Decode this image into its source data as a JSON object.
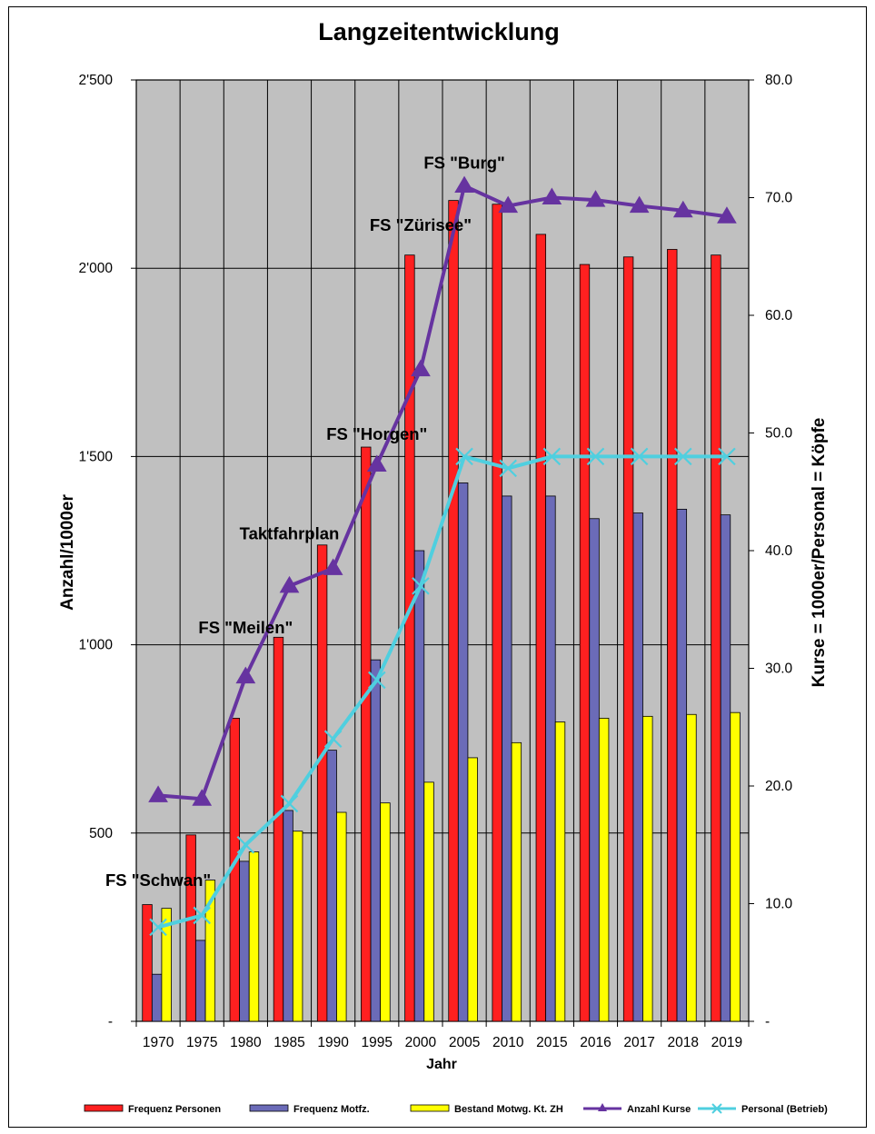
{
  "chart_data": {
    "type": "bar",
    "title": "Langzeitentwicklung",
    "xlabel": "Jahr",
    "ylabel": "Anzahl/1000er",
    "y2label": "Kurse = 1000er/Personal = Köpfe",
    "categories": [
      "1970",
      "1975",
      "1980",
      "1985",
      "1990",
      "1995",
      "2000",
      "2005",
      "2010",
      "2015",
      "2016",
      "2017",
      "2018",
      "2019"
    ],
    "ylim": [
      0,
      2500
    ],
    "y2lim": [
      0,
      80
    ],
    "yticks": [
      "-",
      "500",
      "1'000",
      "1'500",
      "2'000",
      "2'500"
    ],
    "y2ticks": [
      "-",
      "10.0",
      "20.0",
      "30.0",
      "40.0",
      "50.0",
      "60.0",
      "70.0",
      "80.0"
    ],
    "grid": true,
    "plot_background": "#c0c0c0",
    "series": [
      {
        "name": "Frequenz  Personen",
        "type": "bar",
        "axis": "left",
        "color": "#ff2020",
        "values": [
          310,
          495,
          805,
          1020,
          1265,
          1525,
          2035,
          2180,
          2170,
          2090,
          2010,
          2030,
          2050,
          2035
        ]
      },
      {
        "name": "Frequenz  Motfz.",
        "type": "bar",
        "axis": "left",
        "color": "#6b6bb8",
        "values": [
          125,
          215,
          425,
          560,
          720,
          960,
          1250,
          1430,
          1395,
          1395,
          1335,
          1350,
          1360,
          1345
        ]
      },
      {
        "name": "Bestand   Motwg. Kt. ZH",
        "type": "bar",
        "axis": "left",
        "color": "#ffff00",
        "values": [
          300,
          375,
          450,
          505,
          555,
          580,
          635,
          700,
          740,
          795,
          805,
          810,
          815,
          820
        ]
      },
      {
        "name": "Anzahl Kurse",
        "type": "line",
        "axis": "right",
        "color": "#6633a0",
        "marker": "triangle",
        "values": [
          19.2,
          18.9,
          29.3,
          37.0,
          38.5,
          47.3,
          55.4,
          71.0,
          69.3,
          70.0,
          69.8,
          69.3,
          68.9,
          68.4
        ]
      },
      {
        "name": "Personal (Betrieb)",
        "type": "line",
        "axis": "right",
        "color": "#4fcfdf",
        "marker": "x",
        "values": [
          8.0,
          9.0,
          15.0,
          18.5,
          24.0,
          29.0,
          37.0,
          48.0,
          47.0,
          48.0,
          48.0,
          48.0,
          48.0,
          48.0
        ]
      }
    ],
    "annotations": [
      {
        "text": "FS \"Schwan\"",
        "category": "1970",
        "y": 360
      },
      {
        "text": "FS \"Meilen\"",
        "category": "1980",
        "y": 1030
      },
      {
        "text": "Taktfahrplan",
        "category": "1985",
        "y": 1280
      },
      {
        "text": "FS \"Horgen\"",
        "category": "1995",
        "y": 1545
      },
      {
        "text": "FS \"Zürisee\"",
        "category": "2000",
        "y": 2100
      },
      {
        "text": "FS \"Burg\"",
        "category": "2005",
        "y": 2265
      }
    ],
    "legend_position": "bottom"
  }
}
